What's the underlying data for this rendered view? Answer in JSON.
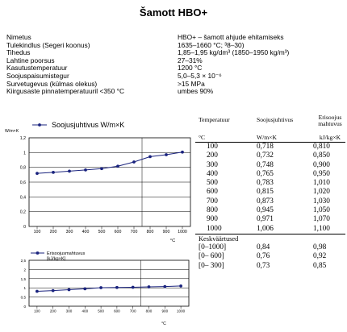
{
  "document": {
    "title": "Šamott HBO+"
  },
  "properties": [
    {
      "name": "Nimetus",
      "value": "HBO+ – šamott ahjude ehitamiseks"
    },
    {
      "name": "Tulekindlus (Segeri koonus)",
      "value": "1635–1660 °C;  ³8–30)"
    },
    {
      "name": "Tihedus",
      "value": "1,85–1,95 kg/dm³ (1850–1950 kg/m³)"
    },
    {
      "name": "Lahtine poorsus",
      "value": "27–31%"
    },
    {
      "name": "Kasutustemperatuur",
      "value": "1200 °C"
    },
    {
      "name": "Soojuspaisumistegur",
      "value": "5,0–5,3 × 10⁻⁶"
    },
    {
      "name": "Survetugevus (külmas olekus)",
      "value": ">15 MPa"
    },
    {
      "name": "Kiirgusaste pinnatemperatuuril <350 °C",
      "value": "umbes 90%"
    }
  ],
  "chart_data": [
    {
      "type": "line",
      "title": "Soojusjuhtivus W/m×K",
      "ylabel": "W/m×K",
      "xlabel": "°C",
      "x": [
        100,
        200,
        300,
        400,
        500,
        600,
        700,
        800,
        900,
        1000
      ],
      "series": [
        {
          "values": [
            0.718,
            0.732,
            0.748,
            0.765,
            0.783,
            0.815,
            0.873,
            0.945,
            0.971,
            1.006
          ]
        }
      ],
      "xticks": [
        "100",
        "200",
        "300",
        "400",
        "500",
        "600",
        "700",
        "800",
        "900",
        "1000"
      ],
      "yticks": [
        "0",
        "0,2",
        "0,4",
        "0,6",
        "0,8",
        "1",
        "1,2"
      ],
      "ylim": [
        0,
        1.2
      ],
      "xlim": [
        50,
        1050
      ],
      "grid": true,
      "color": "#1a237e"
    },
    {
      "type": "line",
      "ylabel": "Erisoojusmahtuvus [kJ/kg×K]",
      "xlabel": "°C",
      "x": [
        100,
        200,
        300,
        400,
        500,
        600,
        700,
        800,
        900,
        1000
      ],
      "series": [
        {
          "name": "Erisoojusmahtuvus",
          "values": [
            0.81,
            0.85,
            0.9,
            0.95,
            1.01,
            1.02,
            1.03,
            1.05,
            1.07,
            1.1
          ]
        }
      ],
      "xticks": [
        "100",
        "200",
        "300",
        "400",
        "500",
        "600",
        "700",
        "800",
        "900",
        "1000"
      ],
      "yticks": [
        "0",
        "0,5",
        "1",
        "1,5",
        "2",
        "2,5"
      ],
      "ylim": [
        0,
        2.5
      ],
      "xlim": [
        50,
        1050
      ],
      "grid": true,
      "color": "#1a237e"
    }
  ],
  "table": {
    "headers": {
      "temp": "Temperatuur",
      "temp_unit": "°C",
      "cond": "Soojusjuhtivus",
      "cond_unit": "W/m×K",
      "cap": "Erisoojus mahtuvus",
      "cap_unit": "kJ/kg×K"
    },
    "rows": [
      [
        "100",
        "0,718",
        "0,810"
      ],
      [
        "200",
        "0,732",
        "0,850"
      ],
      [
        "300",
        "0,748",
        "0,900"
      ],
      [
        "400",
        "0,765",
        "0,950"
      ],
      [
        "500",
        "0,783",
        "1,010"
      ],
      [
        "600",
        "0,815",
        "1,020"
      ],
      [
        "700",
        "0,873",
        "1,030"
      ],
      [
        "800",
        "0,945",
        "1,050"
      ],
      [
        "900",
        "0,971",
        "1,070"
      ],
      [
        "1000",
        "1,006",
        "1,100"
      ]
    ],
    "avg_label": "Keskväärtused",
    "avg_rows": [
      [
        "[0–1000]",
        "0,84",
        "0,98"
      ],
      [
        "[0– 600]",
        "0,76",
        "0,92"
      ],
      [
        "[0– 300]",
        "0,73",
        "0,85"
      ]
    ]
  }
}
